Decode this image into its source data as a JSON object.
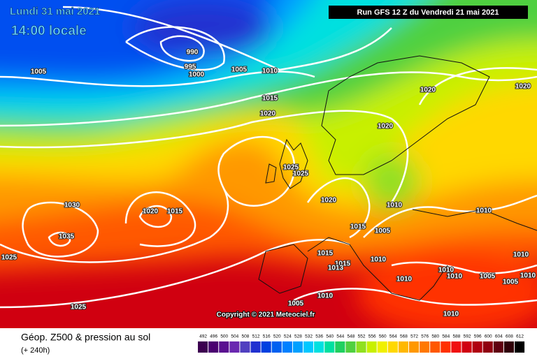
{
  "header": {
    "date": "Lundi 31 mai 2021",
    "time": "14:00 locale",
    "run": "Run GFS 12 Z du Vendredi 21 mai 2021"
  },
  "isobar_labels": [
    990,
    995,
    1000,
    1005,
    1005,
    1010,
    1015,
    1020,
    1020,
    1020,
    1020,
    1025,
    1025,
    1030,
    1020,
    1015,
    1020,
    1010,
    1010,
    1015,
    1005,
    1035,
    1025,
    1015,
    1015,
    1013,
    1010,
    1010,
    1010,
    1005,
    1010,
    1005,
    1010,
    1010,
    1005,
    1010,
    1010,
    1025
  ],
  "copyright": "Copyright © 2021 Meteociel.fr",
  "footer": {
    "title": "Géop. Z500 & pression au sol",
    "lead": "(+ 240h)"
  },
  "scale": [
    {
      "label": 492,
      "color": "#3c0050"
    },
    {
      "label": 496,
      "color": "#4a0070"
    },
    {
      "label": 500,
      "color": "#5a1090"
    },
    {
      "label": 504,
      "color": "#6a28b0"
    },
    {
      "label": 508,
      "color": "#5040c0"
    },
    {
      "label": 512,
      "color": "#2030d0"
    },
    {
      "label": 516,
      "color": "#0040e0"
    },
    {
      "label": 520,
      "color": "#0060f0"
    },
    {
      "label": 524,
      "color": "#0080ff"
    },
    {
      "label": 528,
      "color": "#00a0ff"
    },
    {
      "label": 532,
      "color": "#00c8ff"
    },
    {
      "label": 536,
      "color": "#00e0e0"
    },
    {
      "label": 540,
      "color": "#00e0a0"
    },
    {
      "label": 544,
      "color": "#20d060"
    },
    {
      "label": 548,
      "color": "#50d040"
    },
    {
      "label": 552,
      "color": "#90e020"
    },
    {
      "label": 556,
      "color": "#c8f000"
    },
    {
      "label": 560,
      "color": "#f0f000"
    },
    {
      "label": 564,
      "color": "#ffd800"
    },
    {
      "label": 568,
      "color": "#ffb800"
    },
    {
      "label": 572,
      "color": "#ff9800"
    },
    {
      "label": 576,
      "color": "#ff7800"
    },
    {
      "label": 580,
      "color": "#ff5800"
    },
    {
      "label": 584,
      "color": "#ff3000"
    },
    {
      "label": 588,
      "color": "#f01010"
    },
    {
      "label": 592,
      "color": "#d00010"
    },
    {
      "label": 596,
      "color": "#b00010"
    },
    {
      "label": 600,
      "color": "#900010"
    },
    {
      "label": 604,
      "color": "#600010"
    },
    {
      "label": 608,
      "color": "#300008"
    },
    {
      "label": 612,
      "color": "#000000"
    }
  ]
}
